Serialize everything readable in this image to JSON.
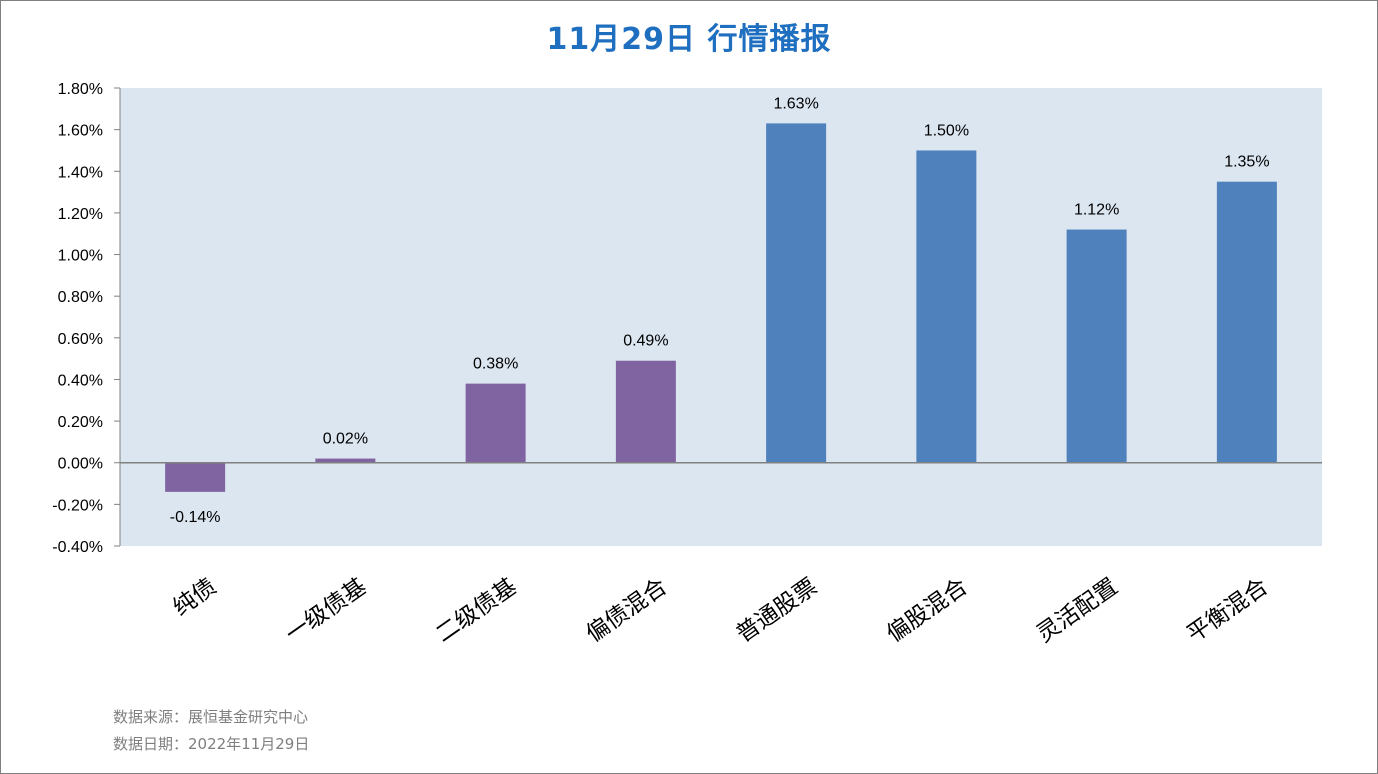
{
  "title": "11月29日  行情播报",
  "footer": {
    "source": "数据来源：展恒基金研究中心",
    "date": "数据日期：2022年11月29日"
  },
  "colors": {
    "plot_bg": "#dce6f1",
    "bond_bar": "#8064a2",
    "equity_bar": "#4f81bd",
    "title": "#1f6fc0",
    "axis": "#808080"
  },
  "chart_data": {
    "type": "bar",
    "title": "11月29日  行情播报",
    "categories": [
      "纯债",
      "一级债基",
      "二级债基",
      "偏债混合",
      "普通股票",
      "偏股混合",
      "灵活配置",
      "平衡混合"
    ],
    "values": [
      -0.14,
      0.02,
      0.38,
      0.49,
      1.63,
      1.5,
      1.12,
      1.35
    ],
    "data_labels": [
      "-0.14%",
      "0.02%",
      "0.38%",
      "0.49%",
      "1.63%",
      "1.50%",
      "1.12%",
      "1.35%"
    ],
    "bar_colors": [
      "#8064a2",
      "#8064a2",
      "#8064a2",
      "#8064a2",
      "#4f81bd",
      "#4f81bd",
      "#4f81bd",
      "#4f81bd"
    ],
    "yticks": [
      -0.4,
      -0.2,
      0.0,
      0.2,
      0.4,
      0.6,
      0.8,
      1.0,
      1.2,
      1.4,
      1.6,
      1.8
    ],
    "ytick_labels": [
      "-0.40%",
      "-0.20%",
      "0.00%",
      "0.20%",
      "0.40%",
      "0.60%",
      "0.80%",
      "1.00%",
      "1.20%",
      "1.40%",
      "1.60%",
      "1.80%"
    ],
    "ylim": [
      -0.4,
      1.8
    ],
    "xlabel": "",
    "ylabel": "",
    "grid": false,
    "legend": "none"
  }
}
